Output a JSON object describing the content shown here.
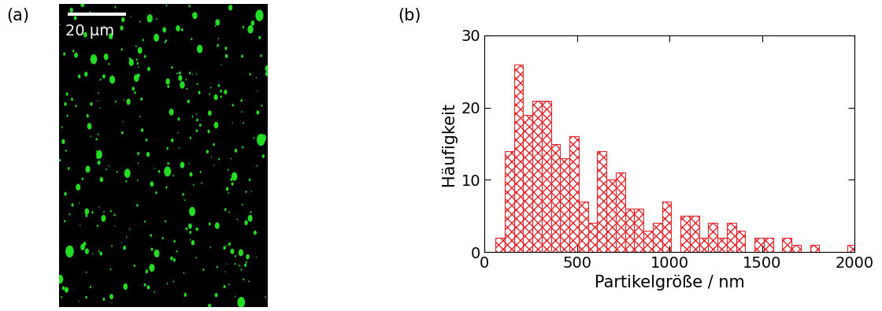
{
  "image": {
    "label": "(a)",
    "scale_bar": "20 µm"
  },
  "chart_data": {
    "type": "histogram",
    "annotations": [
      "(b)"
    ],
    "x_label": "Partikelgröße / nm",
    "y_label": "Häufigkeit",
    "bins": [
      60,
      110,
      160,
      210,
      260,
      310,
      360,
      410,
      460,
      510,
      560,
      610,
      660,
      710,
      760,
      810,
      860,
      910,
      960,
      1010,
      1060,
      1110,
      1160,
      1210,
      1260,
      1310,
      1360,
      1410,
      1460,
      1510,
      1560,
      1610,
      1660,
      1710,
      1760,
      1810,
      1860,
      1910,
      1960,
      2010
    ],
    "counts": [
      2,
      14,
      26,
      19,
      21,
      21,
      15,
      13,
      16,
      7,
      4,
      14,
      10,
      11,
      6,
      6,
      3,
      4,
      7,
      0,
      5,
      5,
      2,
      4,
      2,
      4,
      3,
      0,
      2,
      2,
      0,
      2,
      1,
      0,
      1,
      0,
      0,
      0,
      1
    ],
    "color": "#e8252b",
    "xlim": [
      0,
      2000
    ],
    "xticks": [
      0,
      500,
      1000,
      1500,
      2000
    ],
    "ylim": [
      0,
      30
    ],
    "yticks": [
      0,
      10,
      20,
      30
    ]
  }
}
